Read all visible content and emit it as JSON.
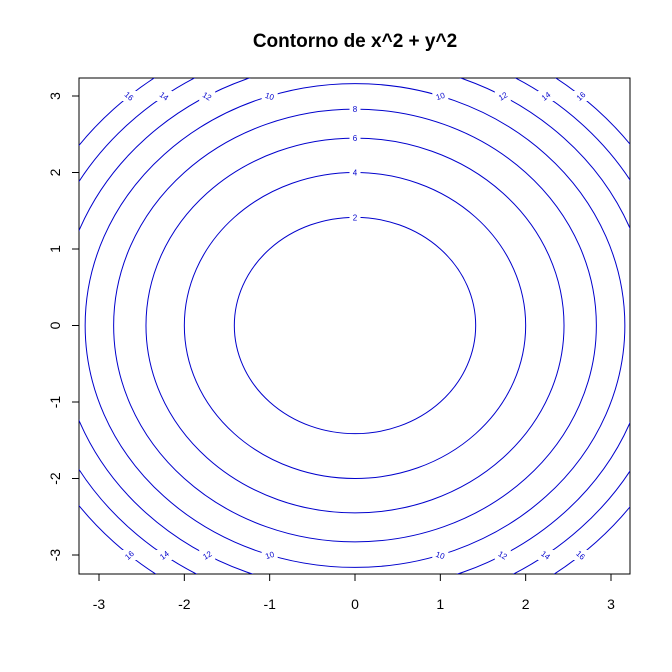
{
  "chart_data": {
    "type": "contour",
    "title": "Contorno de x^2 + y^2",
    "function": "x^2 + y^2",
    "xlabel": "",
    "ylabel": "",
    "xlim": [
      -3,
      3
    ],
    "ylim": [
      -3,
      3
    ],
    "x_ticks": [
      -3,
      -2,
      -1,
      0,
      1,
      2,
      3
    ],
    "y_ticks": [
      -3,
      -2,
      -1,
      0,
      1,
      2,
      3
    ],
    "x_tick_labels": [
      "-3",
      "-2",
      "-1",
      "0",
      "1",
      "2",
      "3"
    ],
    "y_tick_labels": [
      "-3",
      "-2",
      "-1",
      "0",
      "1",
      "2",
      "3"
    ],
    "levels": [
      2,
      4,
      6,
      8,
      10,
      12,
      14,
      16
    ],
    "level_labels": [
      "2",
      "4",
      "6",
      "8",
      "10",
      "12",
      "14",
      "16"
    ],
    "line_color": "#0000cc",
    "grid": false,
    "legend": "none"
  }
}
